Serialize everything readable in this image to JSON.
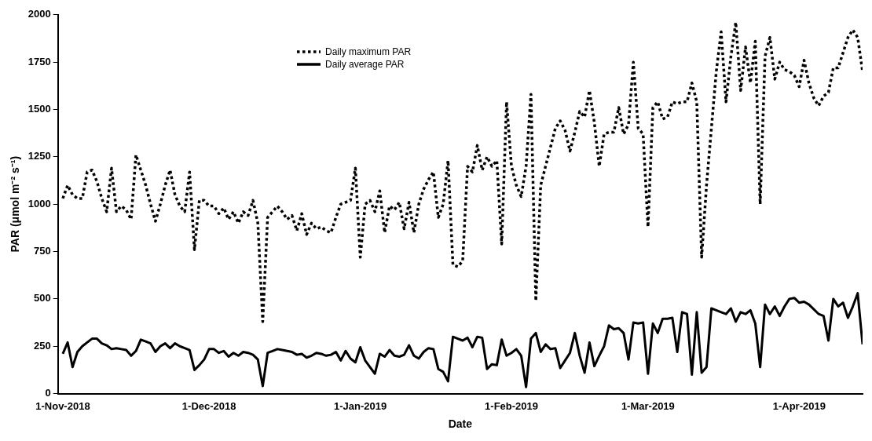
{
  "chart_data": {
    "type": "line",
    "xlabel": "Date",
    "ylabel": "PAR (μmol m⁻² s⁻¹)",
    "x": [
      "2018-11-01",
      "2018-11-02",
      "2018-11-03",
      "2018-11-04",
      "2018-11-05",
      "2018-11-06",
      "2018-11-07",
      "2018-11-08",
      "2018-11-09",
      "2018-11-10",
      "2018-11-11",
      "2018-11-12",
      "2018-11-13",
      "2018-11-14",
      "2018-11-15",
      "2018-11-16",
      "2018-11-17",
      "2018-11-18",
      "2018-11-19",
      "2018-11-20",
      "2018-11-21",
      "2018-11-22",
      "2018-11-23",
      "2018-11-24",
      "2018-11-25",
      "2018-11-26",
      "2018-11-27",
      "2018-11-28",
      "2018-11-29",
      "2018-11-30",
      "2018-12-01",
      "2018-12-02",
      "2018-12-03",
      "2018-12-04",
      "2018-12-05",
      "2018-12-06",
      "2018-12-07",
      "2018-12-08",
      "2018-12-09",
      "2018-12-10",
      "2018-12-11",
      "2018-12-12",
      "2018-12-13",
      "2018-12-14",
      "2018-12-15",
      "2018-12-16",
      "2018-12-17",
      "2018-12-18",
      "2018-12-19",
      "2018-12-20",
      "2018-12-21",
      "2018-12-22",
      "2018-12-23",
      "2018-12-24",
      "2018-12-25",
      "2018-12-26",
      "2018-12-27",
      "2018-12-28",
      "2018-12-29",
      "2018-12-30",
      "2018-12-31",
      "2019-01-01",
      "2019-01-02",
      "2019-01-03",
      "2019-01-04",
      "2019-01-05",
      "2019-01-06",
      "2019-01-07",
      "2019-01-08",
      "2019-01-09",
      "2019-01-10",
      "2019-01-11",
      "2019-01-12",
      "2019-01-13",
      "2019-01-14",
      "2019-01-15",
      "2019-01-16",
      "2019-01-17",
      "2019-01-18",
      "2019-01-19",
      "2019-01-20",
      "2019-01-21",
      "2019-01-22",
      "2019-01-23",
      "2019-01-24",
      "2019-01-25",
      "2019-01-26",
      "2019-01-27",
      "2019-01-28",
      "2019-01-29",
      "2019-01-30",
      "2019-01-31",
      "2019-02-01",
      "2019-02-02",
      "2019-02-03",
      "2019-02-04",
      "2019-02-05",
      "2019-02-06",
      "2019-02-07",
      "2019-02-08",
      "2019-02-09",
      "2019-02-10",
      "2019-02-11",
      "2019-02-12",
      "2019-02-13",
      "2019-02-14",
      "2019-02-15",
      "2019-02-16",
      "2019-02-17",
      "2019-02-18",
      "2019-02-19",
      "2019-02-20",
      "2019-02-21",
      "2019-02-22",
      "2019-02-23",
      "2019-02-24",
      "2019-02-25",
      "2019-02-26",
      "2019-02-27",
      "2019-02-28",
      "2019-03-01",
      "2019-03-02",
      "2019-03-03",
      "2019-03-04",
      "2019-03-05",
      "2019-03-06",
      "2019-03-07",
      "2019-03-08",
      "2019-03-09",
      "2019-03-10",
      "2019-03-11",
      "2019-03-12",
      "2019-03-13",
      "2019-03-14",
      "2019-03-15",
      "2019-03-16",
      "2019-03-17",
      "2019-03-18",
      "2019-03-19",
      "2019-03-20",
      "2019-03-21",
      "2019-03-22",
      "2019-03-23",
      "2019-03-24",
      "2019-03-25",
      "2019-03-26",
      "2019-03-27",
      "2019-03-28",
      "2019-03-29",
      "2019-03-30",
      "2019-03-31",
      "2019-04-01",
      "2019-04-02",
      "2019-04-03",
      "2019-04-04",
      "2019-04-05",
      "2019-04-06",
      "2019-04-07",
      "2019-04-08",
      "2019-04-09",
      "2019-04-10",
      "2019-04-11",
      "2019-04-12",
      "2019-04-13",
      "2019-04-14"
    ],
    "series": [
      {
        "name": "Daily maximum PAR",
        "color": "#000000",
        "line_style": "dotted",
        "values": [
          1030,
          1100,
          1050,
          1030,
          1030,
          1170,
          1180,
          1120,
          1030,
          960,
          1190,
          960,
          990,
          970,
          920,
          1260,
          1180,
          1100,
          1000,
          910,
          1000,
          1100,
          1180,
          1050,
          990,
          960,
          1170,
          760,
          1020,
          1020,
          990,
          990,
          950,
          980,
          920,
          960,
          900,
          960,
          940,
          1020,
          900,
          380,
          930,
          960,
          990,
          960,
          920,
          940,
          860,
          950,
          840,
          900,
          870,
          880,
          860,
          850,
          930,
          1000,
          1010,
          1020,
          1190,
          720,
          1000,
          1020,
          960,
          1070,
          850,
          990,
          970,
          1010,
          870,
          1010,
          850,
          1000,
          1080,
          1130,
          1170,
          930,
          1000,
          1230,
          680,
          670,
          700,
          1200,
          1170,
          1310,
          1180,
          1250,
          1200,
          1230,
          790,
          1540,
          1200,
          1100,
          1040,
          1200,
          1580,
          490,
          1100,
          1200,
          1300,
          1400,
          1440,
          1390,
          1280,
          1380,
          1490,
          1460,
          1600,
          1430,
          1200,
          1370,
          1380,
          1380,
          1510,
          1370,
          1420,
          1750,
          1400,
          1370,
          880,
          1510,
          1540,
          1450,
          1460,
          1540,
          1530,
          1540,
          1540,
          1640,
          1540,
          720,
          1100,
          1400,
          1700,
          1910,
          1540,
          1780,
          1960,
          1600,
          1830,
          1640,
          1860,
          1000,
          1780,
          1880,
          1660,
          1750,
          1710,
          1700,
          1680,
          1620,
          1760,
          1640,
          1560,
          1520,
          1570,
          1590,
          1720,
          1720,
          1800,
          1880,
          1920,
          1880,
          1700
        ]
      },
      {
        "name": "Daily average PAR",
        "color": "#000000",
        "line_style": "solid",
        "values": [
          210,
          270,
          140,
          220,
          250,
          270,
          290,
          290,
          265,
          255,
          235,
          240,
          235,
          230,
          200,
          225,
          285,
          275,
          265,
          220,
          250,
          265,
          240,
          265,
          250,
          240,
          230,
          125,
          150,
          180,
          235,
          235,
          215,
          225,
          195,
          215,
          200,
          220,
          215,
          205,
          180,
          40,
          215,
          225,
          235,
          230,
          225,
          220,
          205,
          210,
          190,
          200,
          215,
          210,
          200,
          205,
          220,
          175,
          225,
          185,
          165,
          245,
          175,
          140,
          105,
          210,
          195,
          230,
          200,
          195,
          205,
          255,
          200,
          185,
          220,
          240,
          235,
          130,
          115,
          65,
          300,
          290,
          280,
          295,
          245,
          300,
          295,
          130,
          155,
          150,
          285,
          200,
          215,
          235,
          200,
          35,
          290,
          320,
          220,
          260,
          235,
          240,
          135,
          175,
          215,
          320,
          200,
          110,
          270,
          145,
          200,
          250,
          360,
          340,
          345,
          320,
          180,
          375,
          370,
          375,
          105,
          370,
          320,
          395,
          395,
          400,
          220,
          430,
          420,
          100,
          430,
          110,
          140,
          450,
          440,
          430,
          420,
          450,
          380,
          430,
          420,
          440,
          370,
          140,
          470,
          420,
          460,
          410,
          460,
          500,
          505,
          480,
          485,
          470,
          445,
          420,
          410,
          280,
          500,
          460,
          480,
          400,
          460,
          530,
          260
        ]
      }
    ],
    "xlim": [
      "2018-10-31",
      "2019-04-14"
    ],
    "xticks": [
      {
        "value": "2018-11-01",
        "label": "1-Nov-2018"
      },
      {
        "value": "2018-12-01",
        "label": "1-Dec-2018"
      },
      {
        "value": "2019-01-01",
        "label": "1-Jan-2019"
      },
      {
        "value": "2019-02-01",
        "label": "1-Feb-2019"
      },
      {
        "value": "2019-03-01",
        "label": "1-Mar-2019"
      },
      {
        "value": "2019-04-01",
        "label": "1-Apr-2019"
      }
    ],
    "ylim": [
      0,
      2000
    ],
    "yticks": [
      0,
      250,
      500,
      750,
      1000,
      1250,
      1500,
      1750,
      2000
    ],
    "grid": false,
    "legend": "top left",
    "marker": "none"
  }
}
